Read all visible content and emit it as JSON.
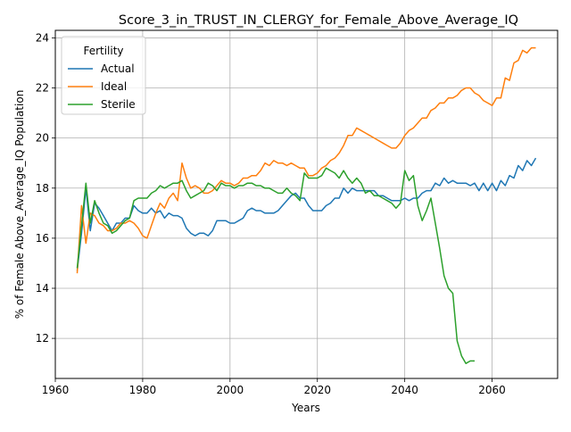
{
  "colors": {
    "actual": "#1f77b4",
    "ideal": "#ff7f0e",
    "sterile": "#2ca02c",
    "grid": "#b0b0b0"
  },
  "chart_data": {
    "type": "line",
    "title": "Score_3_in_TRUST_IN_CLERGY_for_Female_Above_Average_IQ",
    "xlabel": "Years",
    "ylabel": "% of Female Above_Average_IQ Population",
    "xlim": [
      1960,
      2075
    ],
    "ylim": [
      10.4,
      24.3
    ],
    "xticks": [
      1960,
      1980,
      2000,
      2020,
      2040,
      2060
    ],
    "yticks": [
      12,
      14,
      16,
      18,
      20,
      22,
      24
    ],
    "grid": true,
    "legend": {
      "title": "Fertility",
      "position": "top-left"
    },
    "series": [
      {
        "name": "Actual",
        "color": "#1f77b4",
        "x": [
          1965,
          1966,
          1967,
          1968,
          1969,
          1970,
          1971,
          1972,
          1973,
          1974,
          1975,
          1976,
          1977,
          1978,
          1979,
          1980,
          1981,
          1982,
          1983,
          1984,
          1985,
          1986,
          1987,
          1988,
          1989,
          1990,
          1991,
          1992,
          1993,
          1994,
          1995,
          1996,
          1997,
          1998,
          1999,
          2000,
          2001,
          2002,
          2003,
          2004,
          2005,
          2006,
          2007,
          2008,
          2009,
          2010,
          2011,
          2012,
          2013,
          2014,
          2015,
          2016,
          2017,
          2018,
          2019,
          2020,
          2021,
          2022,
          2023,
          2024,
          2025,
          2026,
          2027,
          2028,
          2029,
          2030,
          2031,
          2032,
          2033,
          2034,
          2035,
          2036,
          2037,
          2038,
          2039,
          2040,
          2041,
          2042,
          2043,
          2044,
          2045,
          2046,
          2047,
          2048,
          2049,
          2050,
          2051,
          2052,
          2053,
          2054,
          2055,
          2056,
          2057,
          2058,
          2059,
          2060,
          2061,
          2062,
          2063,
          2064,
          2065,
          2066,
          2067,
          2068,
          2069,
          2070
        ],
        "y": [
          14.7,
          16.2,
          18.0,
          16.3,
          17.4,
          17.2,
          16.9,
          16.6,
          16.3,
          16.6,
          16.6,
          16.8,
          16.8,
          17.3,
          17.1,
          17.0,
          17.0,
          17.2,
          17.0,
          17.1,
          16.8,
          17.0,
          16.9,
          16.9,
          16.8,
          16.4,
          16.2,
          16.1,
          16.2,
          16.2,
          16.1,
          16.3,
          16.7,
          16.7,
          16.7,
          16.6,
          16.6,
          16.7,
          16.8,
          17.1,
          17.2,
          17.1,
          17.1,
          17.0,
          17.0,
          17.0,
          17.1,
          17.3,
          17.5,
          17.7,
          17.8,
          17.6,
          17.6,
          17.3,
          17.1,
          17.1,
          17.1,
          17.3,
          17.4,
          17.6,
          17.6,
          18.0,
          17.8,
          18.0,
          17.9,
          17.9,
          17.9,
          17.9,
          17.9,
          17.7,
          17.7,
          17.6,
          17.5,
          17.5,
          17.5,
          17.6,
          17.5,
          17.6,
          17.6,
          17.8,
          17.9,
          17.9,
          18.2,
          18.1,
          18.4,
          18.2,
          18.3,
          18.2,
          18.2,
          18.2,
          18.1,
          18.2,
          17.9,
          18.2,
          17.9,
          18.2,
          17.9,
          18.3,
          18.1,
          18.5,
          18.4,
          18.9,
          18.7,
          19.1,
          18.9,
          19.2
        ]
      },
      {
        "name": "Ideal",
        "color": "#ff7f0e",
        "x": [
          1965,
          1966,
          1967,
          1968,
          1969,
          1970,
          1971,
          1972,
          1973,
          1974,
          1975,
          1976,
          1977,
          1978,
          1979,
          1980,
          1981,
          1982,
          1983,
          1984,
          1985,
          1986,
          1987,
          1988,
          1989,
          1990,
          1991,
          1992,
          1993,
          1994,
          1995,
          1996,
          1997,
          1998,
          1999,
          2000,
          2001,
          2002,
          2003,
          2004,
          2005,
          2006,
          2007,
          2008,
          2009,
          2010,
          2011,
          2012,
          2013,
          2014,
          2015,
          2016,
          2017,
          2018,
          2019,
          2020,
          2021,
          2022,
          2023,
          2024,
          2025,
          2026,
          2027,
          2028,
          2029,
          2030,
          2031,
          2032,
          2033,
          2034,
          2035,
          2036,
          2037,
          2038,
          2039,
          2040,
          2041,
          2042,
          2043,
          2044,
          2045,
          2046,
          2047,
          2048,
          2049,
          2050,
          2051,
          2052,
          2053,
          2054,
          2055,
          2056,
          2057,
          2058,
          2059,
          2060,
          2061,
          2062,
          2063,
          2064,
          2065,
          2066,
          2067,
          2068,
          2069,
          2070
        ],
        "y": [
          14.6,
          17.3,
          15.8,
          17.0,
          16.9,
          16.6,
          16.5,
          16.3,
          16.3,
          16.4,
          16.6,
          16.6,
          16.7,
          16.6,
          16.4,
          16.1,
          16.0,
          16.5,
          17.0,
          17.4,
          17.2,
          17.6,
          17.8,
          17.5,
          19.0,
          18.4,
          18.0,
          18.1,
          18.0,
          17.8,
          17.8,
          17.9,
          18.1,
          18.3,
          18.2,
          18.2,
          18.1,
          18.2,
          18.4,
          18.4,
          18.5,
          18.5,
          18.7,
          19.0,
          18.9,
          19.1,
          19.0,
          19.0,
          18.9,
          19.0,
          18.9,
          18.8,
          18.8,
          18.5,
          18.5,
          18.6,
          18.8,
          18.9,
          19.1,
          19.2,
          19.4,
          19.7,
          20.1,
          20.1,
          20.4,
          20.3,
          20.2,
          20.1,
          20.0,
          19.9,
          19.8,
          19.7,
          19.6,
          19.6,
          19.8,
          20.1,
          20.3,
          20.4,
          20.6,
          20.8,
          20.8,
          21.1,
          21.2,
          21.4,
          21.4,
          21.6,
          21.6,
          21.7,
          21.9,
          22.0,
          22.0,
          21.8,
          21.7,
          21.5,
          21.4,
          21.3,
          21.6,
          21.6,
          22.4,
          22.3,
          23.0,
          23.1,
          23.5,
          23.4,
          23.6,
          23.6
        ]
      },
      {
        "name": "Sterile",
        "color": "#2ca02c",
        "x": [
          1965,
          1966,
          1967,
          1968,
          1969,
          1970,
          1971,
          1972,
          1973,
          1974,
          1975,
          1976,
          1977,
          1978,
          1979,
          1980,
          1981,
          1982,
          1983,
          1984,
          1985,
          1986,
          1987,
          1988,
          1989,
          1990,
          1991,
          1992,
          1993,
          1994,
          1995,
          1996,
          1997,
          1998,
          1999,
          2000,
          2001,
          2002,
          2003,
          2004,
          2005,
          2006,
          2007,
          2008,
          2009,
          2010,
          2011,
          2012,
          2013,
          2014,
          2015,
          2016,
          2017,
          2018,
          2019,
          2020,
          2021,
          2022,
          2023,
          2024,
          2025,
          2026,
          2027,
          2028,
          2029,
          2030,
          2031,
          2032,
          2033,
          2034,
          2035,
          2036,
          2037,
          2038,
          2039,
          2040,
          2041,
          2042,
          2043,
          2044,
          2045,
          2046,
          2047,
          2048,
          2049,
          2050,
          2051,
          2052,
          2053,
          2054,
          2055,
          2056
        ],
        "y": [
          14.8,
          16.5,
          18.2,
          16.6,
          17.5,
          17.0,
          16.6,
          16.5,
          16.2,
          16.3,
          16.5,
          16.7,
          16.8,
          17.5,
          17.6,
          17.6,
          17.6,
          17.8,
          17.9,
          18.1,
          18.0,
          18.1,
          18.2,
          18.2,
          18.3,
          17.9,
          17.6,
          17.7,
          17.8,
          17.9,
          18.2,
          18.1,
          17.9,
          18.2,
          18.1,
          18.1,
          18.0,
          18.1,
          18.1,
          18.2,
          18.2,
          18.1,
          18.1,
          18.0,
          18.0,
          17.9,
          17.8,
          17.8,
          18.0,
          17.8,
          17.7,
          17.5,
          18.6,
          18.4,
          18.4,
          18.4,
          18.5,
          18.8,
          18.7,
          18.6,
          18.4,
          18.7,
          18.4,
          18.2,
          18.4,
          18.2,
          17.8,
          17.9,
          17.7,
          17.7,
          17.6,
          17.5,
          17.4,
          17.2,
          17.4,
          18.7,
          18.3,
          18.5,
          17.3,
          16.7,
          17.1,
          17.6,
          16.6,
          15.6,
          14.5,
          14.0,
          13.8,
          11.9,
          11.3,
          11.0,
          11.1,
          11.1
        ]
      }
    ]
  }
}
